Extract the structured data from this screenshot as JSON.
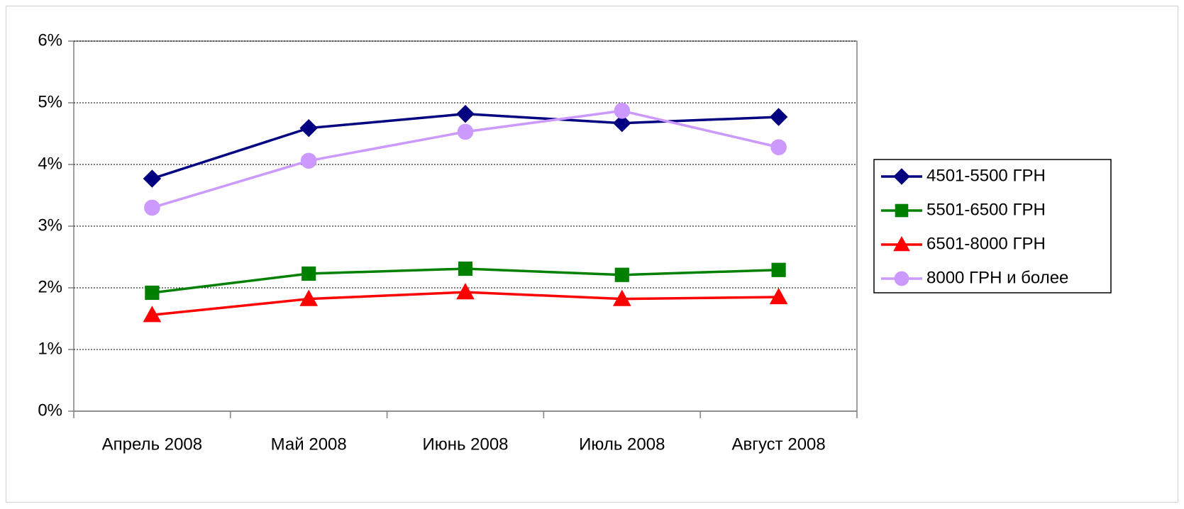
{
  "chart_data": {
    "type": "line",
    "categories": [
      "Апрель 2008",
      "Май 2008",
      "Июнь 2008",
      "Июль 2008",
      "Август 2008"
    ],
    "series": [
      {
        "name": "4501-5500 ГРН",
        "color": "#000080",
        "marker": "diamond",
        "values": [
          3.77,
          4.59,
          4.82,
          4.67,
          4.77
        ]
      },
      {
        "name": "5501-6500 ГРН",
        "color": "#008000",
        "marker": "square",
        "values": [
          1.92,
          2.23,
          2.31,
          2.21,
          2.29
        ]
      },
      {
        "name": "6501-8000 ГРН",
        "color": "#ff0000",
        "marker": "triangle",
        "values": [
          1.56,
          1.82,
          1.93,
          1.82,
          1.85
        ]
      },
      {
        "name": "8000 ГРН и более",
        "color": "#cc99ff",
        "marker": "circle",
        "values": [
          3.3,
          4.06,
          4.53,
          4.87,
          4.28
        ]
      }
    ],
    "ylim": [
      0,
      6
    ],
    "yticks": [
      {
        "value": 0,
        "label": "0%"
      },
      {
        "value": 1,
        "label": "1%"
      },
      {
        "value": 2,
        "label": "2%"
      },
      {
        "value": 3,
        "label": "3%"
      },
      {
        "value": 4,
        "label": "4%"
      },
      {
        "value": 5,
        "label": "5%"
      },
      {
        "value": 6,
        "label": "6%"
      }
    ],
    "grid": true,
    "legend": "right"
  }
}
